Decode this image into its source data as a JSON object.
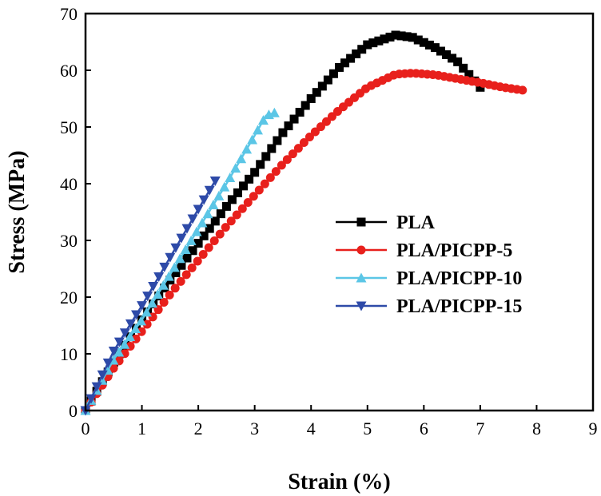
{
  "chart_data": {
    "type": "line",
    "title": "",
    "xlabel": "Strain (%)",
    "ylabel": "Stress (MPa)",
    "xlim": [
      0,
      9
    ],
    "ylim": [
      0,
      70
    ],
    "xticks": [
      0,
      1,
      2,
      3,
      4,
      5,
      6,
      7,
      8,
      9
    ],
    "yticks": [
      0,
      10,
      20,
      30,
      40,
      50,
      60,
      70
    ],
    "grid": false,
    "legend_position": "center-right",
    "series": [
      {
        "name": "PLA",
        "color": "#000000",
        "marker": "square",
        "x": [
          0,
          0.5,
          1.0,
          1.5,
          2.0,
          2.5,
          3.0,
          3.5,
          4.0,
          4.5,
          5.0,
          5.5,
          5.8,
          6.2,
          6.6,
          7.0
        ],
        "y": [
          0,
          8.5,
          16.0,
          23.0,
          29.5,
          36.0,
          42.0,
          49.0,
          55.0,
          60.5,
          64.5,
          66.2,
          65.8,
          64.0,
          61.5,
          57.0
        ]
      },
      {
        "name": "PLA/PICPP-5",
        "color": "#e8201c",
        "marker": "circle",
        "x": [
          0,
          0.5,
          1.0,
          1.5,
          2.0,
          2.5,
          3.0,
          3.5,
          4.0,
          4.5,
          5.0,
          5.5,
          5.8,
          6.2,
          6.6,
          7.0,
          7.4,
          7.75
        ],
        "y": [
          0,
          7.5,
          14.0,
          20.5,
          26.5,
          32.5,
          38.0,
          43.5,
          48.5,
          53.0,
          57.0,
          59.3,
          59.5,
          59.2,
          58.5,
          57.8,
          57.0,
          56.5
        ]
      },
      {
        "name": "PLA/PICPP-10",
        "color": "#5bc6e6",
        "marker": "triangle-up",
        "x": [
          0,
          0.5,
          1.0,
          1.5,
          2.0,
          2.5,
          3.0,
          3.2,
          3.35
        ],
        "y": [
          0,
          9.0,
          16.0,
          24.0,
          32.0,
          40.0,
          48.5,
          52.0,
          52.5
        ]
      },
      {
        "name": "PLA/PICPP-15",
        "color": "#2e4aa8",
        "marker": "triangle-down",
        "x": [
          0,
          0.5,
          1.0,
          1.5,
          2.0,
          2.3
        ],
        "y": [
          0,
          10.5,
          18.5,
          27.0,
          35.5,
          40.5
        ]
      }
    ]
  }
}
